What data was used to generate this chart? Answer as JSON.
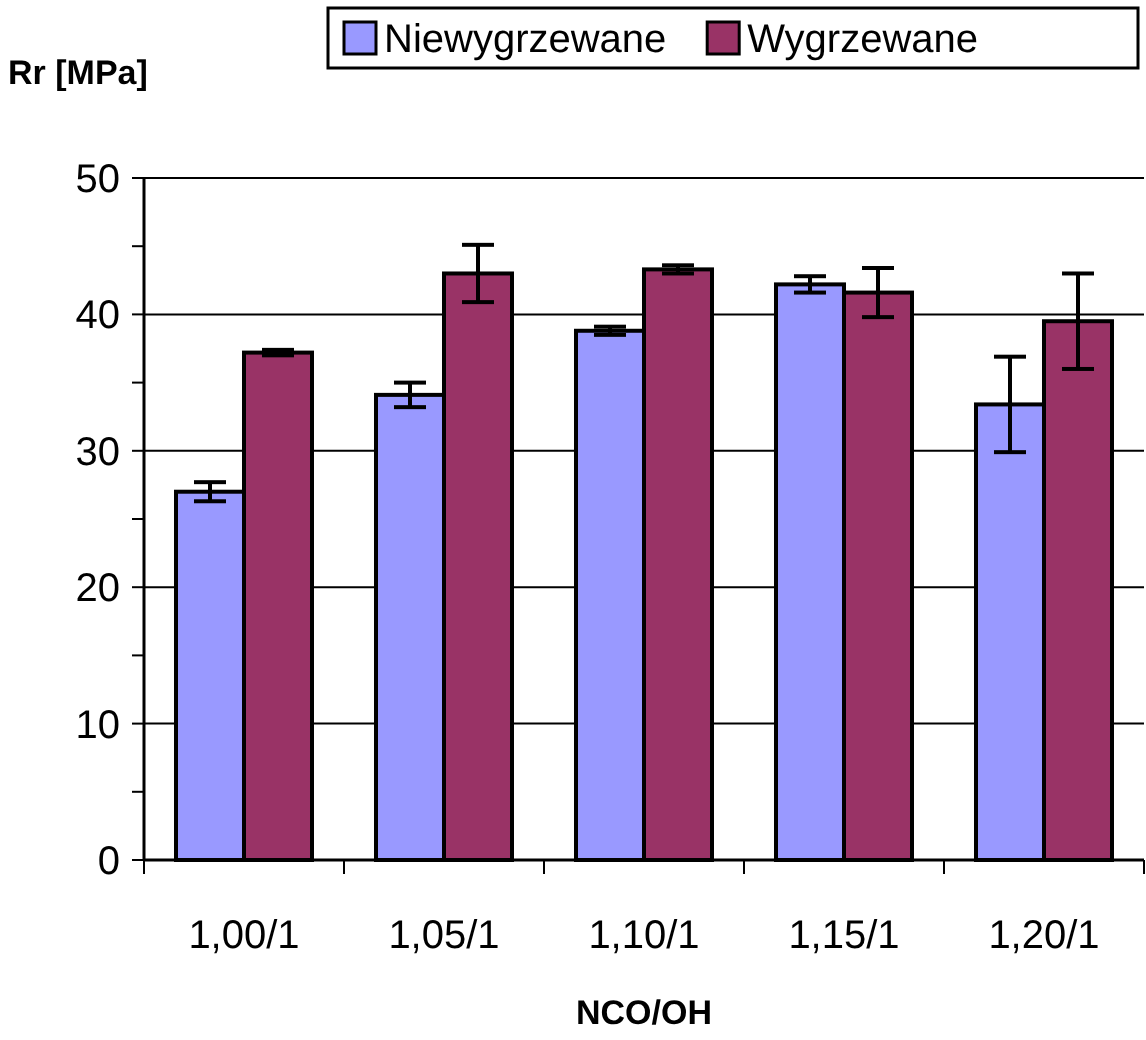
{
  "chart_data": {
    "type": "bar",
    "xlabel": "NCO/OH",
    "ylabel": "Rr [MPa]",
    "categories": [
      "1,00/1",
      "1,05/1",
      "1,10/1",
      "1,15/1",
      "1,20/1"
    ],
    "series": [
      {
        "name": "Niewygrzewane",
        "color": "#9999ff",
        "values": [
          27.0,
          34.1,
          38.8,
          42.2,
          33.4
        ],
        "errors": [
          0.7,
          0.9,
          0.3,
          0.6,
          3.5
        ]
      },
      {
        "name": "Wygrzewane",
        "color": "#993366",
        "values": [
          37.2,
          43.0,
          43.3,
          41.6,
          39.5
        ],
        "errors": [
          0.2,
          2.1,
          0.3,
          1.8,
          3.5
        ]
      }
    ],
    "ylim": [
      0,
      50
    ],
    "yticks": [
      0,
      {
        "value": 5,
        "label": null
      },
      10,
      {
        "value": 15,
        "label": null
      },
      20,
      {
        "value": 25,
        "label": null
      },
      30,
      {
        "value": 35,
        "label": null
      },
      40,
      {
        "value": 45,
        "label": null
      },
      50
    ],
    "grid": "y",
    "legend": "top right"
  }
}
